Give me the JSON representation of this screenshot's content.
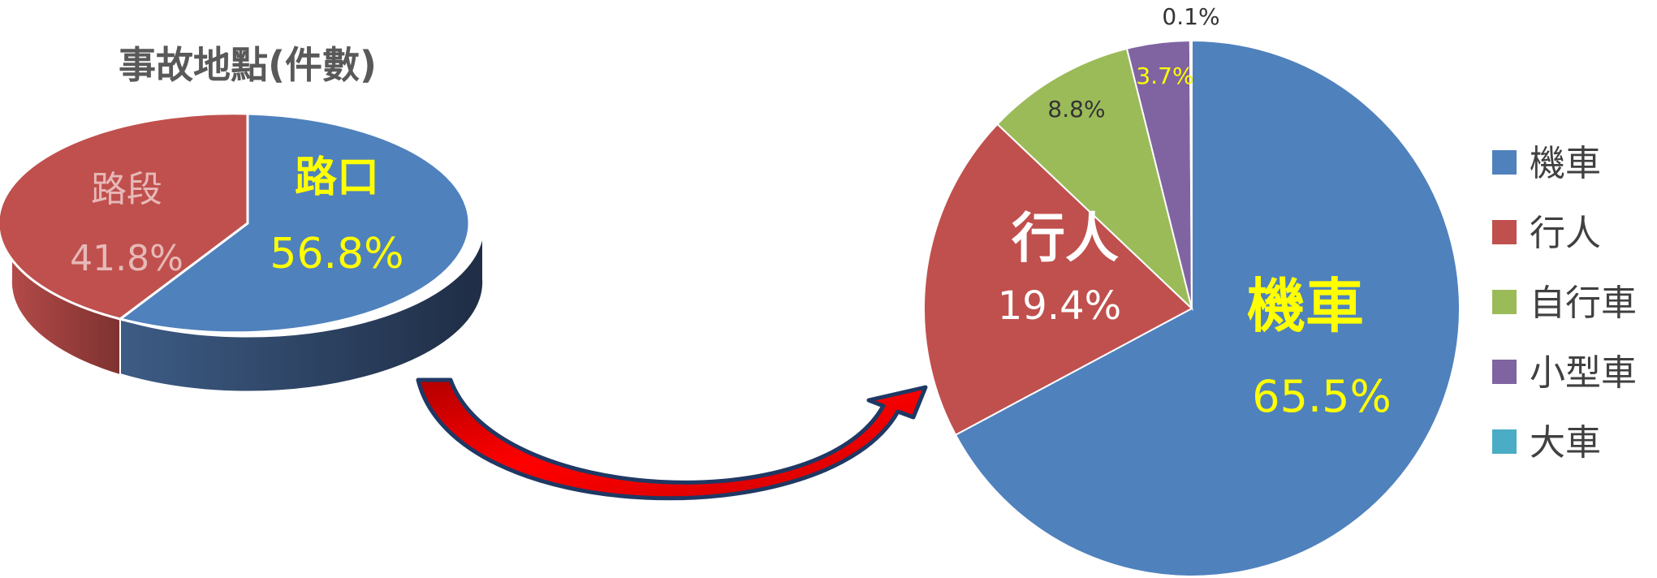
{
  "chart_data": [
    {
      "type": "pie",
      "style": "3d",
      "title": "事故地點(件數)",
      "categories": [
        "路口",
        "路段"
      ],
      "values": [
        56.8,
        41.8
      ],
      "labels": [
        "56.8%",
        "41.8%"
      ],
      "colors": [
        "#4F81BD",
        "#C0504D"
      ],
      "label_colors": {
        "name": [
          "#FFFF00",
          "#E6B9B8"
        ],
        "value": [
          "#FFFF00",
          "#E6B9B8"
        ]
      }
    },
    {
      "type": "pie",
      "categories": [
        "機車",
        "行人",
        "自行車",
        "小型車",
        "大車"
      ],
      "values": [
        65.5,
        19.4,
        8.8,
        3.7,
        0.1
      ],
      "labels": [
        "65.5%",
        "19.4%",
        "8.8%",
        "3.7%",
        "0.1%"
      ],
      "colors": [
        "#4F81BD",
        "#C0504D",
        "#9BBB59",
        "#8064A2",
        "#4BACC6"
      ],
      "label_colors": [
        "#FFFF00",
        "#FFFFFF",
        "#333333",
        "#FFFF00",
        "#333333"
      ],
      "legend": {
        "position": "right",
        "entries": [
          "機車",
          "行人",
          "自行車",
          "小型車",
          "大車"
        ]
      }
    }
  ],
  "arrow": {
    "fill": "#FF0000",
    "stroke": "#1F3864"
  }
}
